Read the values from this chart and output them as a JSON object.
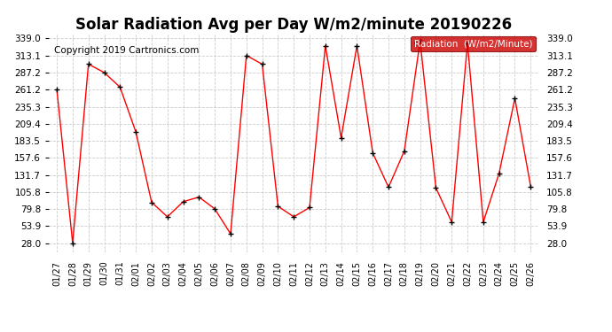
{
  "title": "Solar Radiation Avg per Day W/m2/minute 20190226",
  "copyright": "Copyright 2019 Cartronics.com",
  "legend_label": "Radiation  (W/m2/Minute)",
  "dates": [
    "01/27",
    "01/28",
    "01/29",
    "01/30",
    "01/31",
    "02/01",
    "02/02",
    "02/03",
    "02/04",
    "02/05",
    "02/06",
    "02/07",
    "02/08",
    "02/09",
    "02/10",
    "02/11",
    "02/12",
    "02/13",
    "02/14",
    "02/15",
    "02/16",
    "02/17",
    "02/18",
    "02/19",
    "02/20",
    "02/21",
    "02/22",
    "02/23",
    "02/24",
    "02/25",
    "02/26"
  ],
  "values": [
    261.2,
    28.0,
    300.0,
    287.2,
    265.0,
    197.0,
    90.0,
    68.0,
    91.0,
    98.0,
    80.0,
    42.0,
    313.1,
    300.0,
    84.0,
    68.0,
    82.0,
    328.0,
    188.0,
    328.0,
    165.0,
    113.0,
    168.0,
    335.0,
    112.0,
    60.0,
    332.0,
    60.0,
    134.0,
    248.0,
    114.0
  ],
  "line_color": "#ff0000",
  "marker": "+",
  "marker_color": "#000000",
  "legend_bg": "#cc0000",
  "legend_text_color": "#ffffff",
  "yticks": [
    28.0,
    53.9,
    79.8,
    105.8,
    131.7,
    157.6,
    183.5,
    209.4,
    235.3,
    261.2,
    287.2,
    313.1,
    339.0
  ],
  "ylim": [
    14.0,
    347.0
  ],
  "bg_color": "#ffffff",
  "grid_color": "#cccccc",
  "title_fontsize": 12,
  "copyright_fontsize": 7.5
}
